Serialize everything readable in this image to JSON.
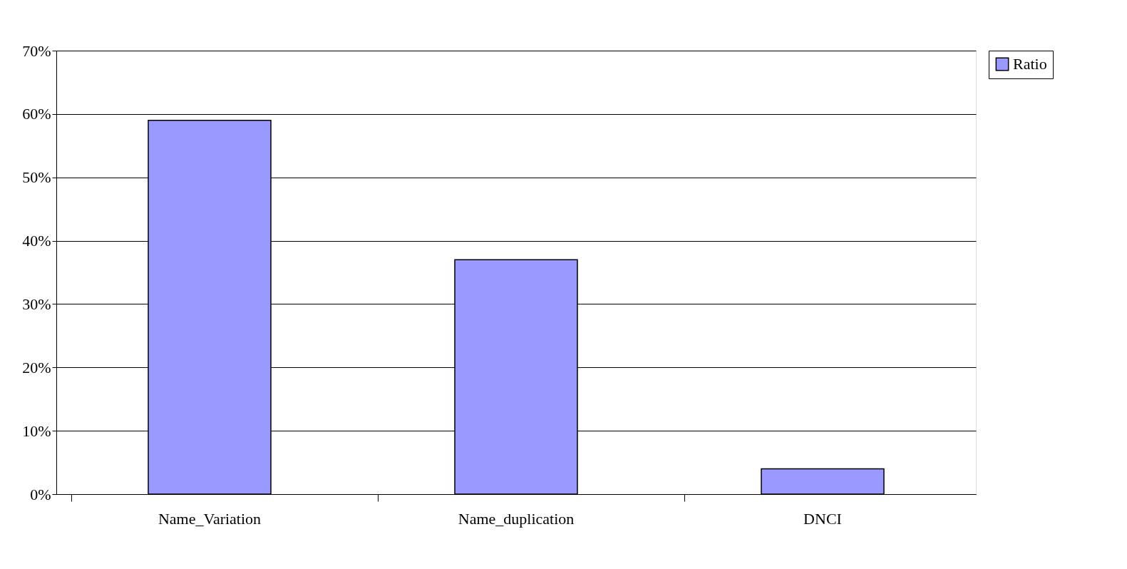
{
  "chart_data": {
    "type": "bar",
    "categories": [
      "Name_Variation",
      "Name_duplication",
      "DNCI"
    ],
    "series": [
      {
        "name": "Ratio",
        "color": "#9999ff",
        "values": [
          59,
          37,
          4
        ]
      }
    ],
    "ylim": [
      0,
      70
    ],
    "yticks": [
      {
        "value": 0,
        "label": "0%"
      },
      {
        "value": 10,
        "label": "10%"
      },
      {
        "value": 20,
        "label": "20%"
      },
      {
        "value": 30,
        "label": "30%"
      },
      {
        "value": 40,
        "label": "40%"
      },
      {
        "value": 50,
        "label": "50%"
      },
      {
        "value": 60,
        "label": "60%"
      },
      {
        "value": 70,
        "label": "70%"
      }
    ],
    "grid": "y",
    "legend": "right"
  }
}
